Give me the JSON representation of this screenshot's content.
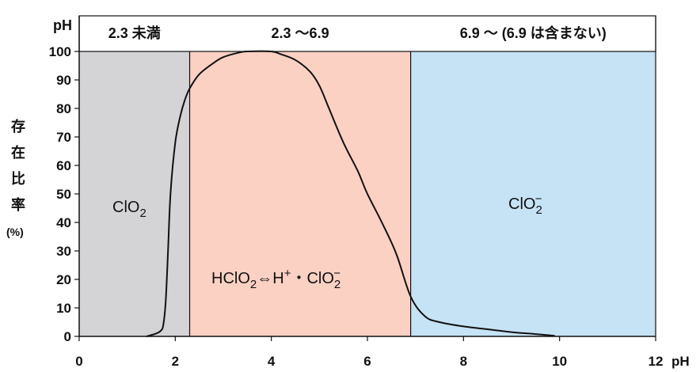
{
  "chart_data": {
    "type": "line",
    "x_unit_label": "pH",
    "y_unit_label": "pH",
    "ylabel_chars": [
      "存",
      "在",
      "比",
      "率"
    ],
    "ylabel_unit": "(%)",
    "xlim": [
      0,
      12
    ],
    "ylim": [
      0,
      100
    ],
    "x_ticks": [
      "0",
      "2",
      "4",
      "6",
      "8",
      "10",
      "12"
    ],
    "y_ticks": [
      "0",
      "10",
      "20",
      "30",
      "40",
      "50",
      "60",
      "70",
      "80",
      "90",
      "100"
    ],
    "regions": [
      {
        "x_range": [
          0,
          2.3
        ],
        "header": "2.3 未満",
        "color": "#d4d3d6"
      },
      {
        "x_range": [
          2.3,
          6.9
        ],
        "header": "2.3 〜6.9",
        "color": "#fbd1c3"
      },
      {
        "x_range": [
          6.9,
          12
        ],
        "header": "6.9 〜 (6.9 は含まない)",
        "color": "#c6e3f6"
      }
    ],
    "species_labels": {
      "left": {
        "main": "ClO",
        "sub": "2"
      },
      "middle": {
        "a": "HClO",
        "a_sub": "2",
        "arrow": "⇔",
        "b": "H",
        "b_sup": "+",
        "dot": "・",
        "c": "ClO",
        "c_sub": "2",
        "c_sup": "−"
      },
      "right": {
        "main": "ClO",
        "sub": "2",
        "sup": "−"
      }
    },
    "series": [
      {
        "x": [
          1.4,
          1.6,
          1.7,
          1.75,
          1.8,
          1.85,
          1.9,
          2.0,
          2.1,
          2.2,
          2.3,
          2.5,
          2.8,
          3.0,
          3.3,
          3.5,
          4.0,
          4.2,
          4.5,
          4.8,
          5.0,
          5.2,
          5.5,
          5.8,
          6.0,
          6.3,
          6.6,
          6.9,
          7.2,
          7.5,
          8.0,
          8.5,
          9.0,
          9.5,
          9.9
        ],
        "y": [
          0,
          1,
          2,
          4,
          12,
          30,
          50,
          68,
          77,
          83,
          87,
          92,
          96,
          98,
          99.5,
          100,
          100,
          99,
          97,
          93,
          88,
          80,
          68,
          58,
          50,
          40,
          29,
          14,
          7,
          5,
          3.5,
          2.5,
          1.5,
          0.8,
          0.2
        ]
      }
    ],
    "grid": false,
    "line_color": "#111111"
  }
}
